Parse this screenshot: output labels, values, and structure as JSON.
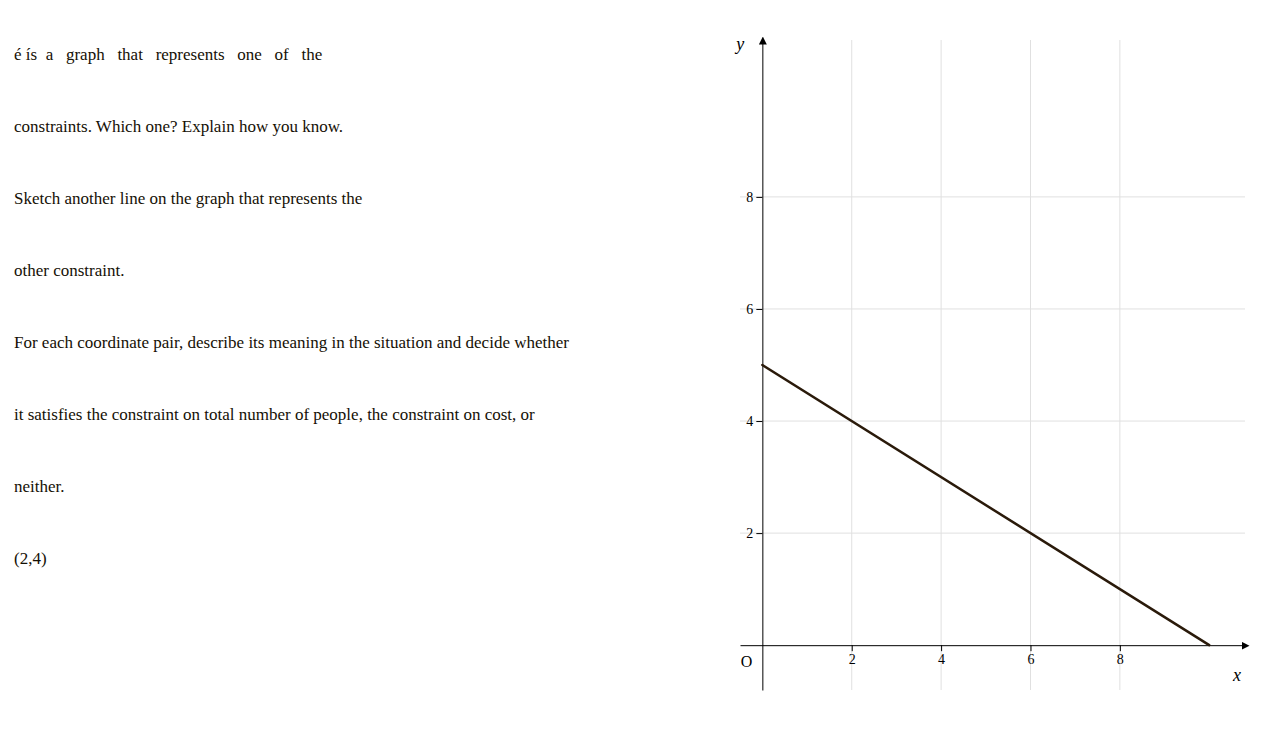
{
  "chart_data": {
    "type": "line",
    "xlabel": "x",
    "ylabel": "y",
    "x": [
      0,
      10
    ],
    "values": [
      5,
      0
    ],
    "color": "#2a1a0a",
    "xlim": [
      -0.5,
      10.8
    ],
    "ylim": [
      -0.8,
      10.8
    ],
    "xticks": [
      2,
      4,
      6,
      8
    ],
    "yticks": [
      2,
      4,
      6,
      8
    ],
    "grid": true,
    "annotations": [
      {
        "text": "O",
        "x": 0,
        "y": 0
      },
      {
        "text": "é ís  a   graph   that   represents   one   of   the"
      },
      {
        "text": "constraints. Which one? Explain how you know."
      },
      {
        "text": "Sketch another line on the graph that represents the"
      },
      {
        "text": "other constraint."
      },
      {
        "text": "For each coordinate pair, describe its meaning in the situation and decide whether"
      },
      {
        "text": "it satisfies the constraint on total number of people, the constraint on cost, or"
      },
      {
        "text": "neither."
      },
      {
        "text": "(2,4)"
      }
    ]
  }
}
